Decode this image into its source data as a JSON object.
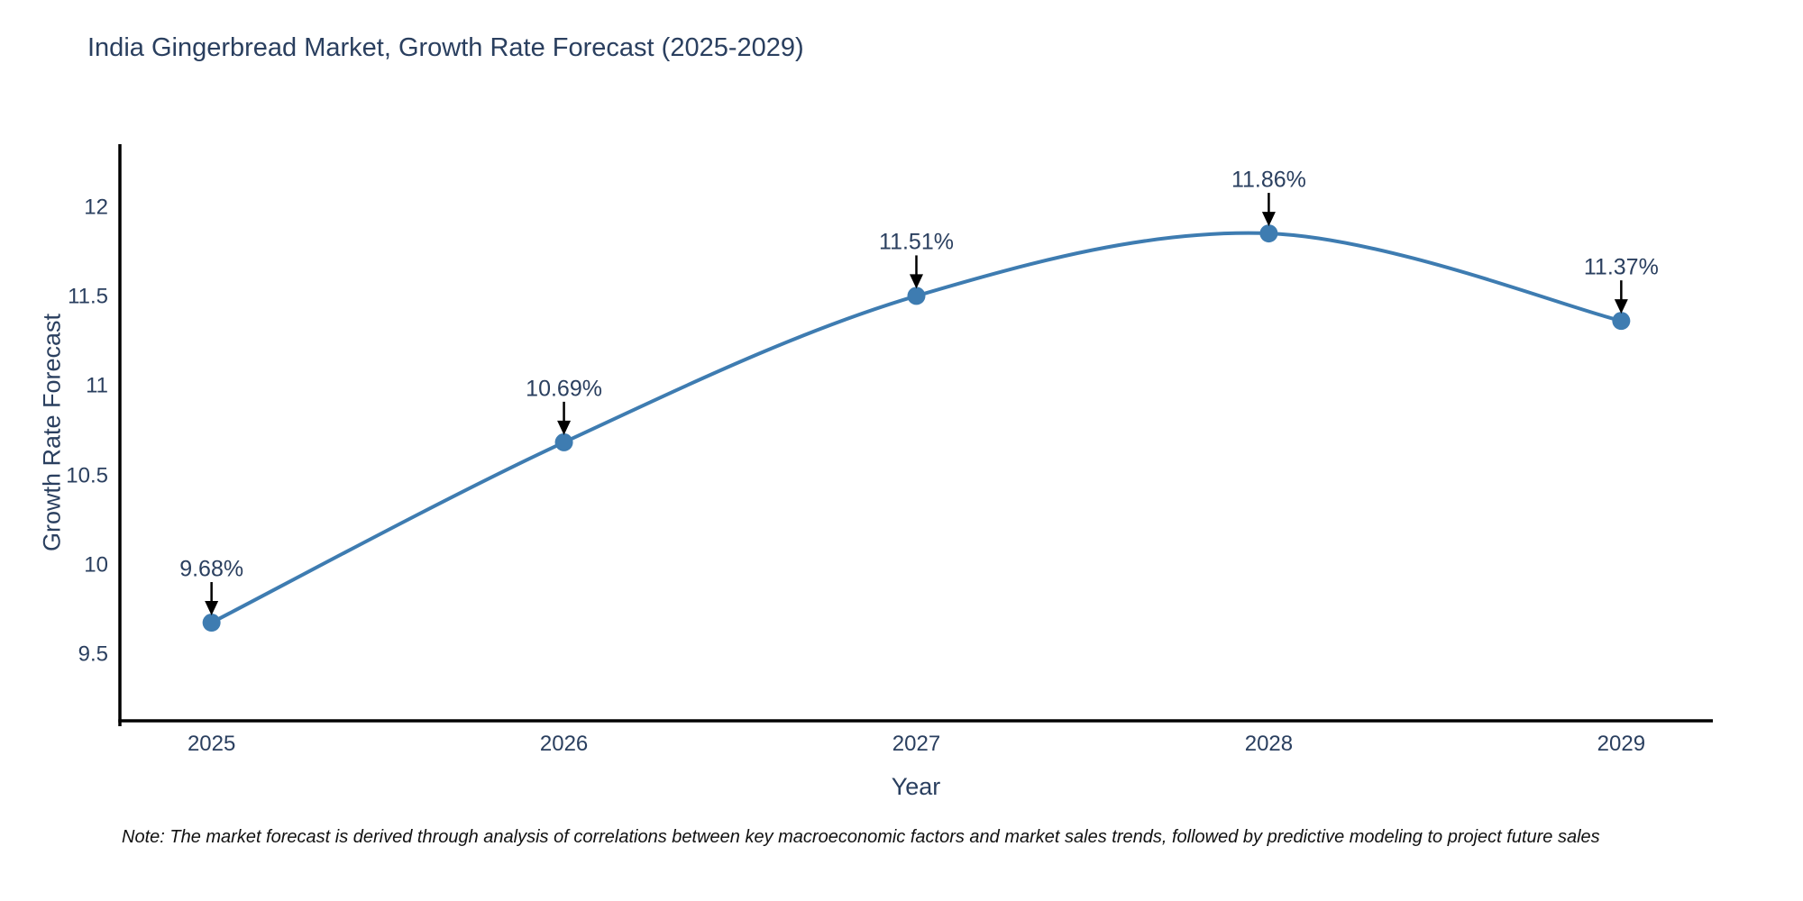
{
  "chart_data": {
    "type": "line",
    "title": "India Gingerbread Market, Growth Rate Forecast (2025-2029)",
    "xlabel": "Year",
    "ylabel": "Growth Rate Forecast",
    "x": [
      2025,
      2026,
      2027,
      2028,
      2029
    ],
    "values": [
      9.68,
      10.69,
      11.51,
      11.86,
      11.37
    ],
    "point_labels": [
      "9.68%",
      "10.69%",
      "11.51%",
      "11.86%",
      "11.37%"
    ],
    "xtick_labels": [
      "2025",
      "2026",
      "2027",
      "2028",
      "2029"
    ],
    "ytick_values": [
      9.5,
      10,
      10.5,
      11,
      11.5,
      12
    ],
    "ytick_labels": [
      "9.5",
      "10",
      "10.5",
      "11",
      "11.5",
      "12"
    ],
    "ylim": [
      9.13,
      12.36
    ],
    "xlim": [
      2024.74,
      2029.26
    ],
    "grid": false,
    "legend": "none",
    "line_shape": "spline",
    "line_color": "#3E7CB1",
    "marker_color": "#3E7CB1",
    "axis_color": "#000000",
    "text_color": "#2a3f5f",
    "annotation_arrow_color": "#000000",
    "note": "Note: The market forecast is derived through analysis of correlations between key macroeconomic factors and market sales trends, followed by predictive modeling to project future sales"
  }
}
